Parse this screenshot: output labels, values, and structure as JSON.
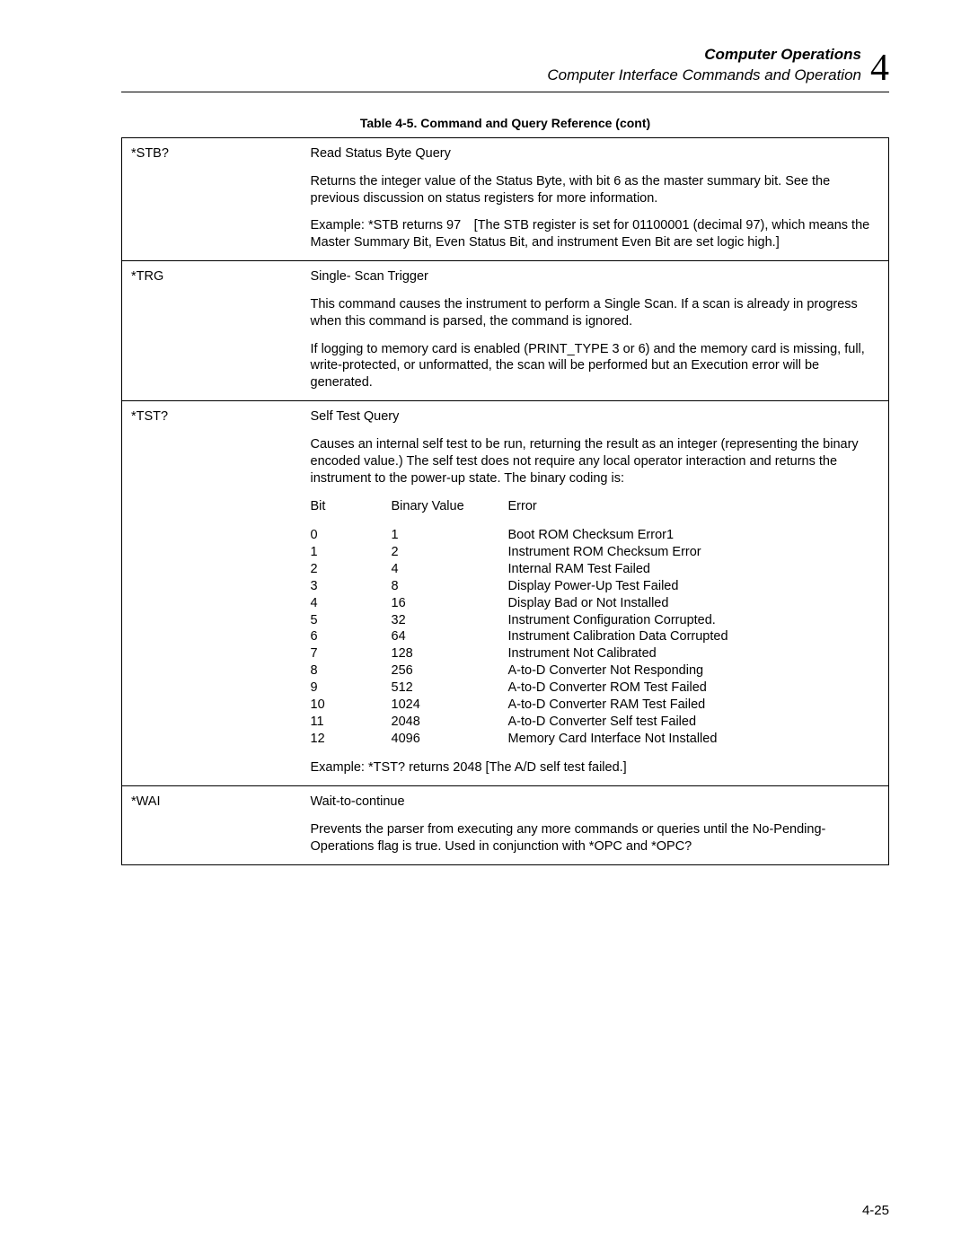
{
  "header": {
    "title": "Computer Operations",
    "subtitle": "Computer Interface Commands and Operation",
    "chapter_number": "4"
  },
  "table_caption": "Table 4-5. Command and Query Reference (cont)",
  "page_number": "4-25",
  "rows": {
    "stb": {
      "cmd": "*STB?",
      "title": "Read Status Byte Query",
      "p1": "Returns the integer value of the Status Byte, with bit 6 as the master summary bit. See the previous discussion on status registers for more information.",
      "p2": "Example: *STB returns 97 [The STB register is set for 01100001 (decimal 97), which means the Master Summary Bit, Even Status Bit, and instrument Even Bit are set logic high.]"
    },
    "trg": {
      "cmd": "*TRG",
      "title": "Single- Scan Trigger",
      "p1": "This command causes the instrument to perform a Single Scan. If a scan is already in progress when this command is parsed, the command is ignored.",
      "p2": "If logging to memory card is enabled (PRINT_TYPE 3 or 6) and the memory card is missing, full, write-protected, or unformatted, the scan will be performed but an Execution error will be generated."
    },
    "tst": {
      "cmd": "*TST?",
      "title": "Self Test Query",
      "p1": "Causes an internal self test to be run, returning the result as an integer (representing the binary encoded value.) The self test does not require any local operator interaction and returns the instrument to the power-up state. The binary coding is:",
      "hdr_bit": "Bit",
      "hdr_bv": "Binary Value",
      "hdr_err": "Error",
      "bits": [
        {
          "b": "0",
          "v": "1",
          "e": "Boot ROM Checksum Error1"
        },
        {
          "b": "1",
          "v": "2",
          "e": "Instrument ROM Checksum Error"
        },
        {
          "b": "2",
          "v": "4",
          "e": "Internal RAM Test Failed"
        },
        {
          "b": "3",
          "v": "8",
          "e": "Display Power-Up Test Failed"
        },
        {
          "b": "4",
          "v": "16",
          "e": "Display Bad or Not Installed"
        },
        {
          "b": "5",
          "v": "32",
          "e": "Instrument Configuration Corrupted."
        },
        {
          "b": "6",
          "v": "64",
          "e": "Instrument Calibration Data Corrupted"
        },
        {
          "b": "7",
          "v": "128",
          "e": "Instrument Not Calibrated"
        },
        {
          "b": "8",
          "v": "256",
          "e": "A-to-D Converter Not Responding"
        },
        {
          "b": "9",
          "v": "512",
          "e": "A-to-D Converter ROM Test Failed"
        },
        {
          "b": "10",
          "v": "1024",
          "e": "A-to-D Converter RAM Test Failed"
        },
        {
          "b": "11",
          "v": "2048",
          "e": "A-to-D Converter Self test Failed"
        },
        {
          "b": "12",
          "v": "4096",
          "e": "Memory Card Interface Not Installed"
        }
      ],
      "example": "Example: *TST? returns 2048 [The A/D self test failed.]"
    },
    "wai": {
      "cmd": "*WAI",
      "title": "Wait-to-continue",
      "p1": "Prevents the parser from executing any more commands or queries until the No-Pending-Operations flag is true. Used in conjunction with *OPC and *OPC?"
    }
  }
}
